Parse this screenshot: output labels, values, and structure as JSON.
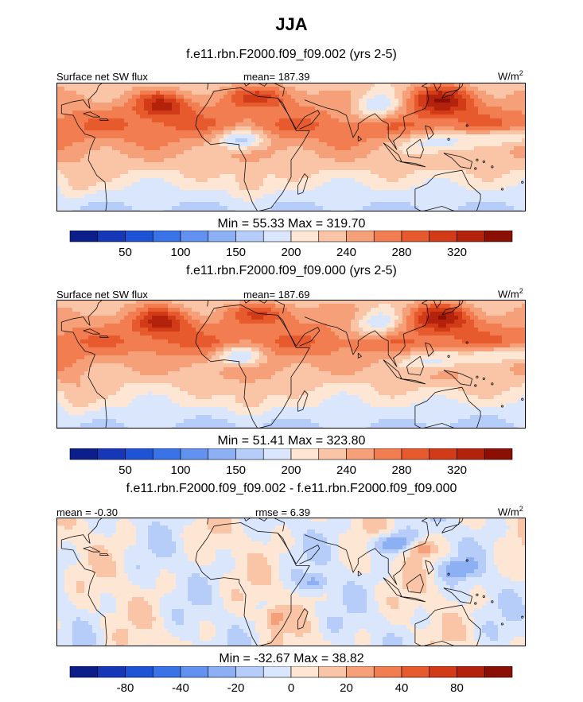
{
  "title": "JJA",
  "colors": {
    "frame": "#000000",
    "coast": "#111111",
    "sequential": [
      "#0c1e8a",
      "#1638b8",
      "#1f53d6",
      "#3a72e8",
      "#6291ef",
      "#8db0f4",
      "#b5cdf8",
      "#d9e6fb",
      "#fde6d3",
      "#f9c5a6",
      "#f6a079",
      "#f17d51",
      "#e65a2e",
      "#d23b18",
      "#b3230c",
      "#8b0f04"
    ],
    "diverging": [
      "#0c1e8a",
      "#1638b8",
      "#1f53d6",
      "#3a72e8",
      "#6291ef",
      "#8db0f4",
      "#b5cdf8",
      "#d9e6fb",
      "#fde6d3",
      "#f9c5a6",
      "#f6a079",
      "#f17d51",
      "#e65a2e",
      "#d23b18",
      "#b3230c",
      "#8b0f04"
    ]
  },
  "panels": [
    {
      "subtitle": "f.e11.rbn.F2000.f09_f09.002 (yrs 2-5)",
      "left_label": "Surface net SW flux",
      "center_label": "mean= 187.39",
      "units_base": "W/m",
      "units_exp": "2",
      "minmax": "Min =  55.33 Max = 319.70",
      "field": "seq",
      "colorbar_ticks": [
        "50",
        "100",
        "150",
        "200",
        "240",
        "280",
        "320"
      ]
    },
    {
      "subtitle": "f.e11.rbn.F2000.f09_f09.000 (yrs 2-5)",
      "left_label": "Surface net SW flux",
      "center_label": "mean= 187.69",
      "units_base": "W/m",
      "units_exp": "2",
      "minmax": "Min =  51.41 Max = 323.80",
      "field": "seq",
      "colorbar_ticks": [
        "50",
        "100",
        "150",
        "200",
        "240",
        "280",
        "320"
      ]
    },
    {
      "subtitle": "f.e11.rbn.F2000.f09_f09.002 - f.e11.rbn.F2000.f09_f09.000",
      "left_label": "mean =  -0.30",
      "center_label": "rmse =   6.39",
      "units_base": "W/m",
      "units_exp": "2",
      "minmax": "Min = -32.67 Max =  38.82",
      "field": "diff",
      "colorbar_ticks": [
        "-80",
        "-40",
        "-20",
        "0",
        "20",
        "40",
        "80"
      ]
    }
  ]
}
